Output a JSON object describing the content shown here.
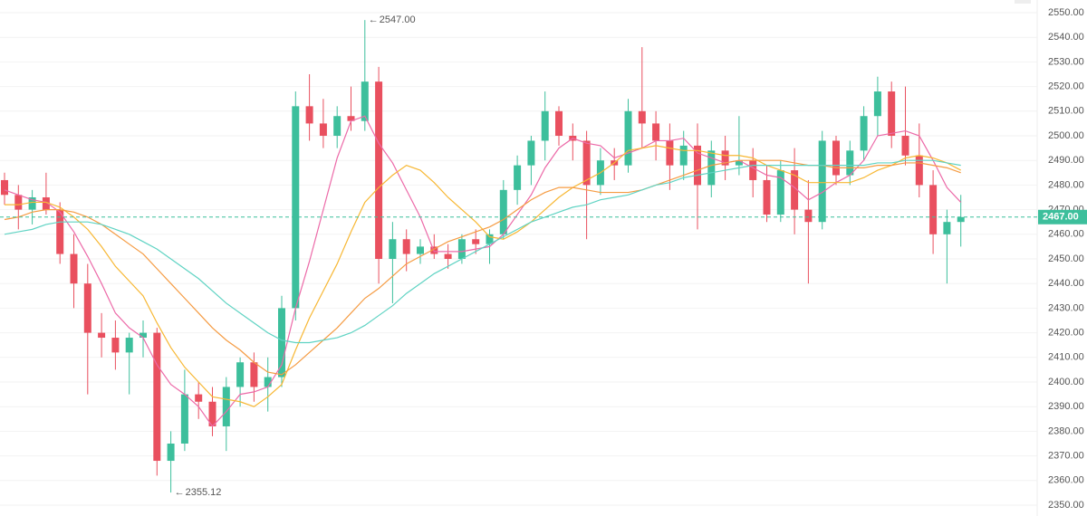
{
  "chart_data": {
    "type": "candlestick",
    "ohlc": [
      [
        2482,
        2485,
        2472,
        2476
      ],
      [
        2476,
        2480,
        2462,
        2470
      ],
      [
        2470,
        2478,
        2464,
        2475
      ],
      [
        2475,
        2485,
        2468,
        2470
      ],
      [
        2470,
        2473,
        2448,
        2452
      ],
      [
        2452,
        2460,
        2430,
        2440
      ],
      [
        2440,
        2448,
        2395,
        2420
      ],
      [
        2420,
        2428,
        2410,
        2418
      ],
      [
        2418,
        2425,
        2405,
        2412
      ],
      [
        2412,
        2420,
        2395,
        2418
      ],
      [
        2418,
        2425,
        2410,
        2420
      ],
      [
        2420,
        2422,
        2362,
        2368
      ],
      [
        2368,
        2380,
        2355.12,
        2375
      ],
      [
        2375,
        2405,
        2372,
        2395
      ],
      [
        2395,
        2400,
        2385,
        2392
      ],
      [
        2392,
        2398,
        2378,
        2382
      ],
      [
        2382,
        2402,
        2372,
        2398
      ],
      [
        2398,
        2410,
        2390,
        2408
      ],
      [
        2408,
        2412,
        2392,
        2398
      ],
      [
        2398,
        2410,
        2388,
        2402
      ],
      [
        2402,
        2435,
        2398,
        2430
      ],
      [
        2430,
        2518,
        2425,
        2512
      ],
      [
        2512,
        2525,
        2498,
        2505
      ],
      [
        2505,
        2515,
        2495,
        2500
      ],
      [
        2500,
        2512,
        2495,
        2508
      ],
      [
        2508,
        2520,
        2502,
        2506
      ],
      [
        2506,
        2547,
        2502,
        2522
      ],
      [
        2522,
        2528,
        2440,
        2450
      ],
      [
        2450,
        2465,
        2432,
        2458
      ],
      [
        2458,
        2462,
        2445,
        2452
      ],
      [
        2452,
        2458,
        2448,
        2455
      ],
      [
        2455,
        2460,
        2450,
        2452
      ],
      [
        2452,
        2456,
        2446,
        2450
      ],
      [
        2450,
        2460,
        2448,
        2458
      ],
      [
        2458,
        2462,
        2452,
        2456
      ],
      [
        2456,
        2462,
        2448,
        2460
      ],
      [
        2460,
        2482,
        2458,
        2478
      ],
      [
        2478,
        2492,
        2472,
        2488
      ],
      [
        2488,
        2500,
        2480,
        2498
      ],
      [
        2498,
        2518,
        2490,
        2510
      ],
      [
        2510,
        2512,
        2496,
        2500
      ],
      [
        2500,
        2505,
        2490,
        2498
      ],
      [
        2498,
        2502,
        2458,
        2480
      ],
      [
        2480,
        2495,
        2476,
        2490
      ],
      [
        2490,
        2495,
        2482,
        2488
      ],
      [
        2488,
        2515,
        2485,
        2510
      ],
      [
        2510,
        2536,
        2495,
        2505
      ],
      [
        2505,
        2510,
        2490,
        2498
      ],
      [
        2498,
        2505,
        2478,
        2488
      ],
      [
        2488,
        2502,
        2482,
        2496
      ],
      [
        2496,
        2505,
        2462,
        2480
      ],
      [
        2480,
        2498,
        2475,
        2494
      ],
      [
        2494,
        2500,
        2482,
        2488
      ],
      [
        2488,
        2508,
        2484,
        2490
      ],
      [
        2490,
        2495,
        2475,
        2482
      ],
      [
        2482,
        2488,
        2465,
        2468
      ],
      [
        2468,
        2490,
        2465,
        2486
      ],
      [
        2486,
        2495,
        2460,
        2470
      ],
      [
        2470,
        2482,
        2440,
        2465
      ],
      [
        2465,
        2502,
        2462,
        2498
      ],
      [
        2498,
        2500,
        2480,
        2484
      ],
      [
        2484,
        2498,
        2480,
        2494
      ],
      [
        2494,
        2512,
        2490,
        2508
      ],
      [
        2508,
        2524,
        2500,
        2518
      ],
      [
        2518,
        2522,
        2495,
        2500
      ],
      [
        2500,
        2520,
        2488,
        2492
      ],
      [
        2492,
        2505,
        2475,
        2480
      ],
      [
        2480,
        2486,
        2452,
        2460
      ],
      [
        2460,
        2470,
        2440,
        2465
      ],
      [
        2465,
        2476,
        2455,
        2467
      ]
    ],
    "up_color": "#3dbf9c",
    "down_color": "#e9505f",
    "series": [
      {
        "color": "#ec6aa8",
        "values": [
          2478,
          2476,
          2474,
          2473,
          2469,
          2461,
          2451,
          2440,
          2428,
          2422,
          2418,
          2407,
          2399,
          2395,
          2390,
          2382,
          2388,
          2395,
          2396,
          2398,
          2407,
          2430,
          2449,
          2470,
          2491,
          2506,
          2508,
          2497,
          2489,
          2478,
          2467,
          2453,
          2453,
          2453,
          2454,
          2455,
          2460,
          2468,
          2476,
          2487,
          2495,
          2499,
          2497,
          2496,
          2491,
          2493,
          2495,
          2498,
          2498,
          2499,
          2493,
          2491,
          2489,
          2490,
          2487,
          2484,
          2483,
          2479,
          2474,
          2477,
          2481,
          2484,
          2490,
          2500,
          2501,
          2502,
          2500,
          2490,
          2479,
          2473
        ]
      },
      {
        "color": "#f7b733",
        "values": [
          2472,
          2472,
          2473,
          2473,
          2471,
          2467,
          2462,
          2455,
          2447,
          2441,
          2435,
          2424,
          2414,
          2406,
          2400,
          2394,
          2393,
          2392,
          2390,
          2394,
          2399,
          2413,
          2426,
          2437,
          2448,
          2461,
          2473,
          2479,
          2484,
          2488,
          2486,
          2481,
          2475,
          2470,
          2465,
          2459,
          2458,
          2461,
          2465,
          2470,
          2475,
          2479,
          2482,
          2485,
          2489,
          2494,
          2495,
          2496,
          2495,
          2494,
          2494,
          2493,
          2492,
          2492,
          2491,
          2488,
          2486,
          2484,
          2481,
          2481,
          2481,
          2481,
          2483,
          2486,
          2488,
          2491,
          2492,
          2491,
          2489,
          2486
        ]
      },
      {
        "color": "#f59b42",
        "values": [
          2466,
          2467,
          2469,
          2470,
          2470,
          2469,
          2467,
          2464,
          2460,
          2456,
          2452,
          2446,
          2440,
          2434,
          2428,
          2422,
          2417,
          2413,
          2408,
          2404,
          2403,
          2407,
          2412,
          2417,
          2422,
          2428,
          2434,
          2438,
          2443,
          2448,
          2451,
          2454,
          2457,
          2459,
          2461,
          2463,
          2466,
          2470,
          2474,
          2477,
          2479,
          2479,
          2478,
          2477,
          2477,
          2477,
          2478,
          2480,
          2482,
          2484,
          2486,
          2488,
          2489,
          2490,
          2490,
          2490,
          2490,
          2489,
          2488,
          2488,
          2487,
          2487,
          2487,
          2488,
          2488,
          2489,
          2489,
          2488,
          2487,
          2485
        ]
      },
      {
        "color": "#5fd3c3",
        "values": [
          2460,
          2461,
          2462,
          2464,
          2465,
          2465,
          2465,
          2464,
          2462,
          2460,
          2457,
          2454,
          2450,
          2446,
          2442,
          2437,
          2432,
          2428,
          2424,
          2420,
          2417,
          2416,
          2416,
          2417,
          2418,
          2420,
          2423,
          2427,
          2431,
          2436,
          2440,
          2444,
          2447,
          2450,
          2453,
          2456,
          2459,
          2462,
          2465,
          2467,
          2469,
          2471,
          2472,
          2474,
          2475,
          2476,
          2478,
          2480,
          2481,
          2483,
          2484,
          2485,
          2486,
          2487,
          2488,
          2488,
          2488,
          2488,
          2488,
          2488,
          2488,
          2488,
          2488,
          2489,
          2489,
          2490,
          2490,
          2490,
          2489,
          2488
        ]
      }
    ],
    "last_price": {
      "value": 2467,
      "label": "2467.00"
    },
    "annotations": [
      {
        "value": 2547,
        "label": "2547.00",
        "x": 26
      },
      {
        "value": 2355.12,
        "label": "2355.12",
        "x": 12
      }
    ],
    "ylim": [
      2350,
      2550
    ],
    "yticks": [
      {
        "value": 2350,
        "label": "2350.00"
      },
      {
        "value": 2360,
        "label": "2360.00"
      },
      {
        "value": 2370,
        "label": "2370.00"
      },
      {
        "value": 2380,
        "label": "2380.00"
      },
      {
        "value": 2390,
        "label": "2390.00"
      },
      {
        "value": 2400,
        "label": "2400.00"
      },
      {
        "value": 2410,
        "label": "2410.00"
      },
      {
        "value": 2420,
        "label": "2420.00"
      },
      {
        "value": 2430,
        "label": "2430.00"
      },
      {
        "value": 2440,
        "label": "2440.00"
      },
      {
        "value": 2450,
        "label": "2450.00"
      },
      {
        "value": 2460,
        "label": "2460.00"
      },
      {
        "value": 2470,
        "label": "2470.00"
      },
      {
        "value": 2480,
        "label": "2480.00"
      },
      {
        "value": 2490,
        "label": "2490.00"
      },
      {
        "value": 2500,
        "label": "2500.00"
      },
      {
        "value": 2510,
        "label": "2510.00"
      },
      {
        "value": 2520,
        "label": "2520.00"
      },
      {
        "value": 2530,
        "label": "2530.00"
      },
      {
        "value": 2540,
        "label": "2540.00"
      },
      {
        "value": 2550,
        "label": "2550.00"
      }
    ],
    "grid": true
  }
}
